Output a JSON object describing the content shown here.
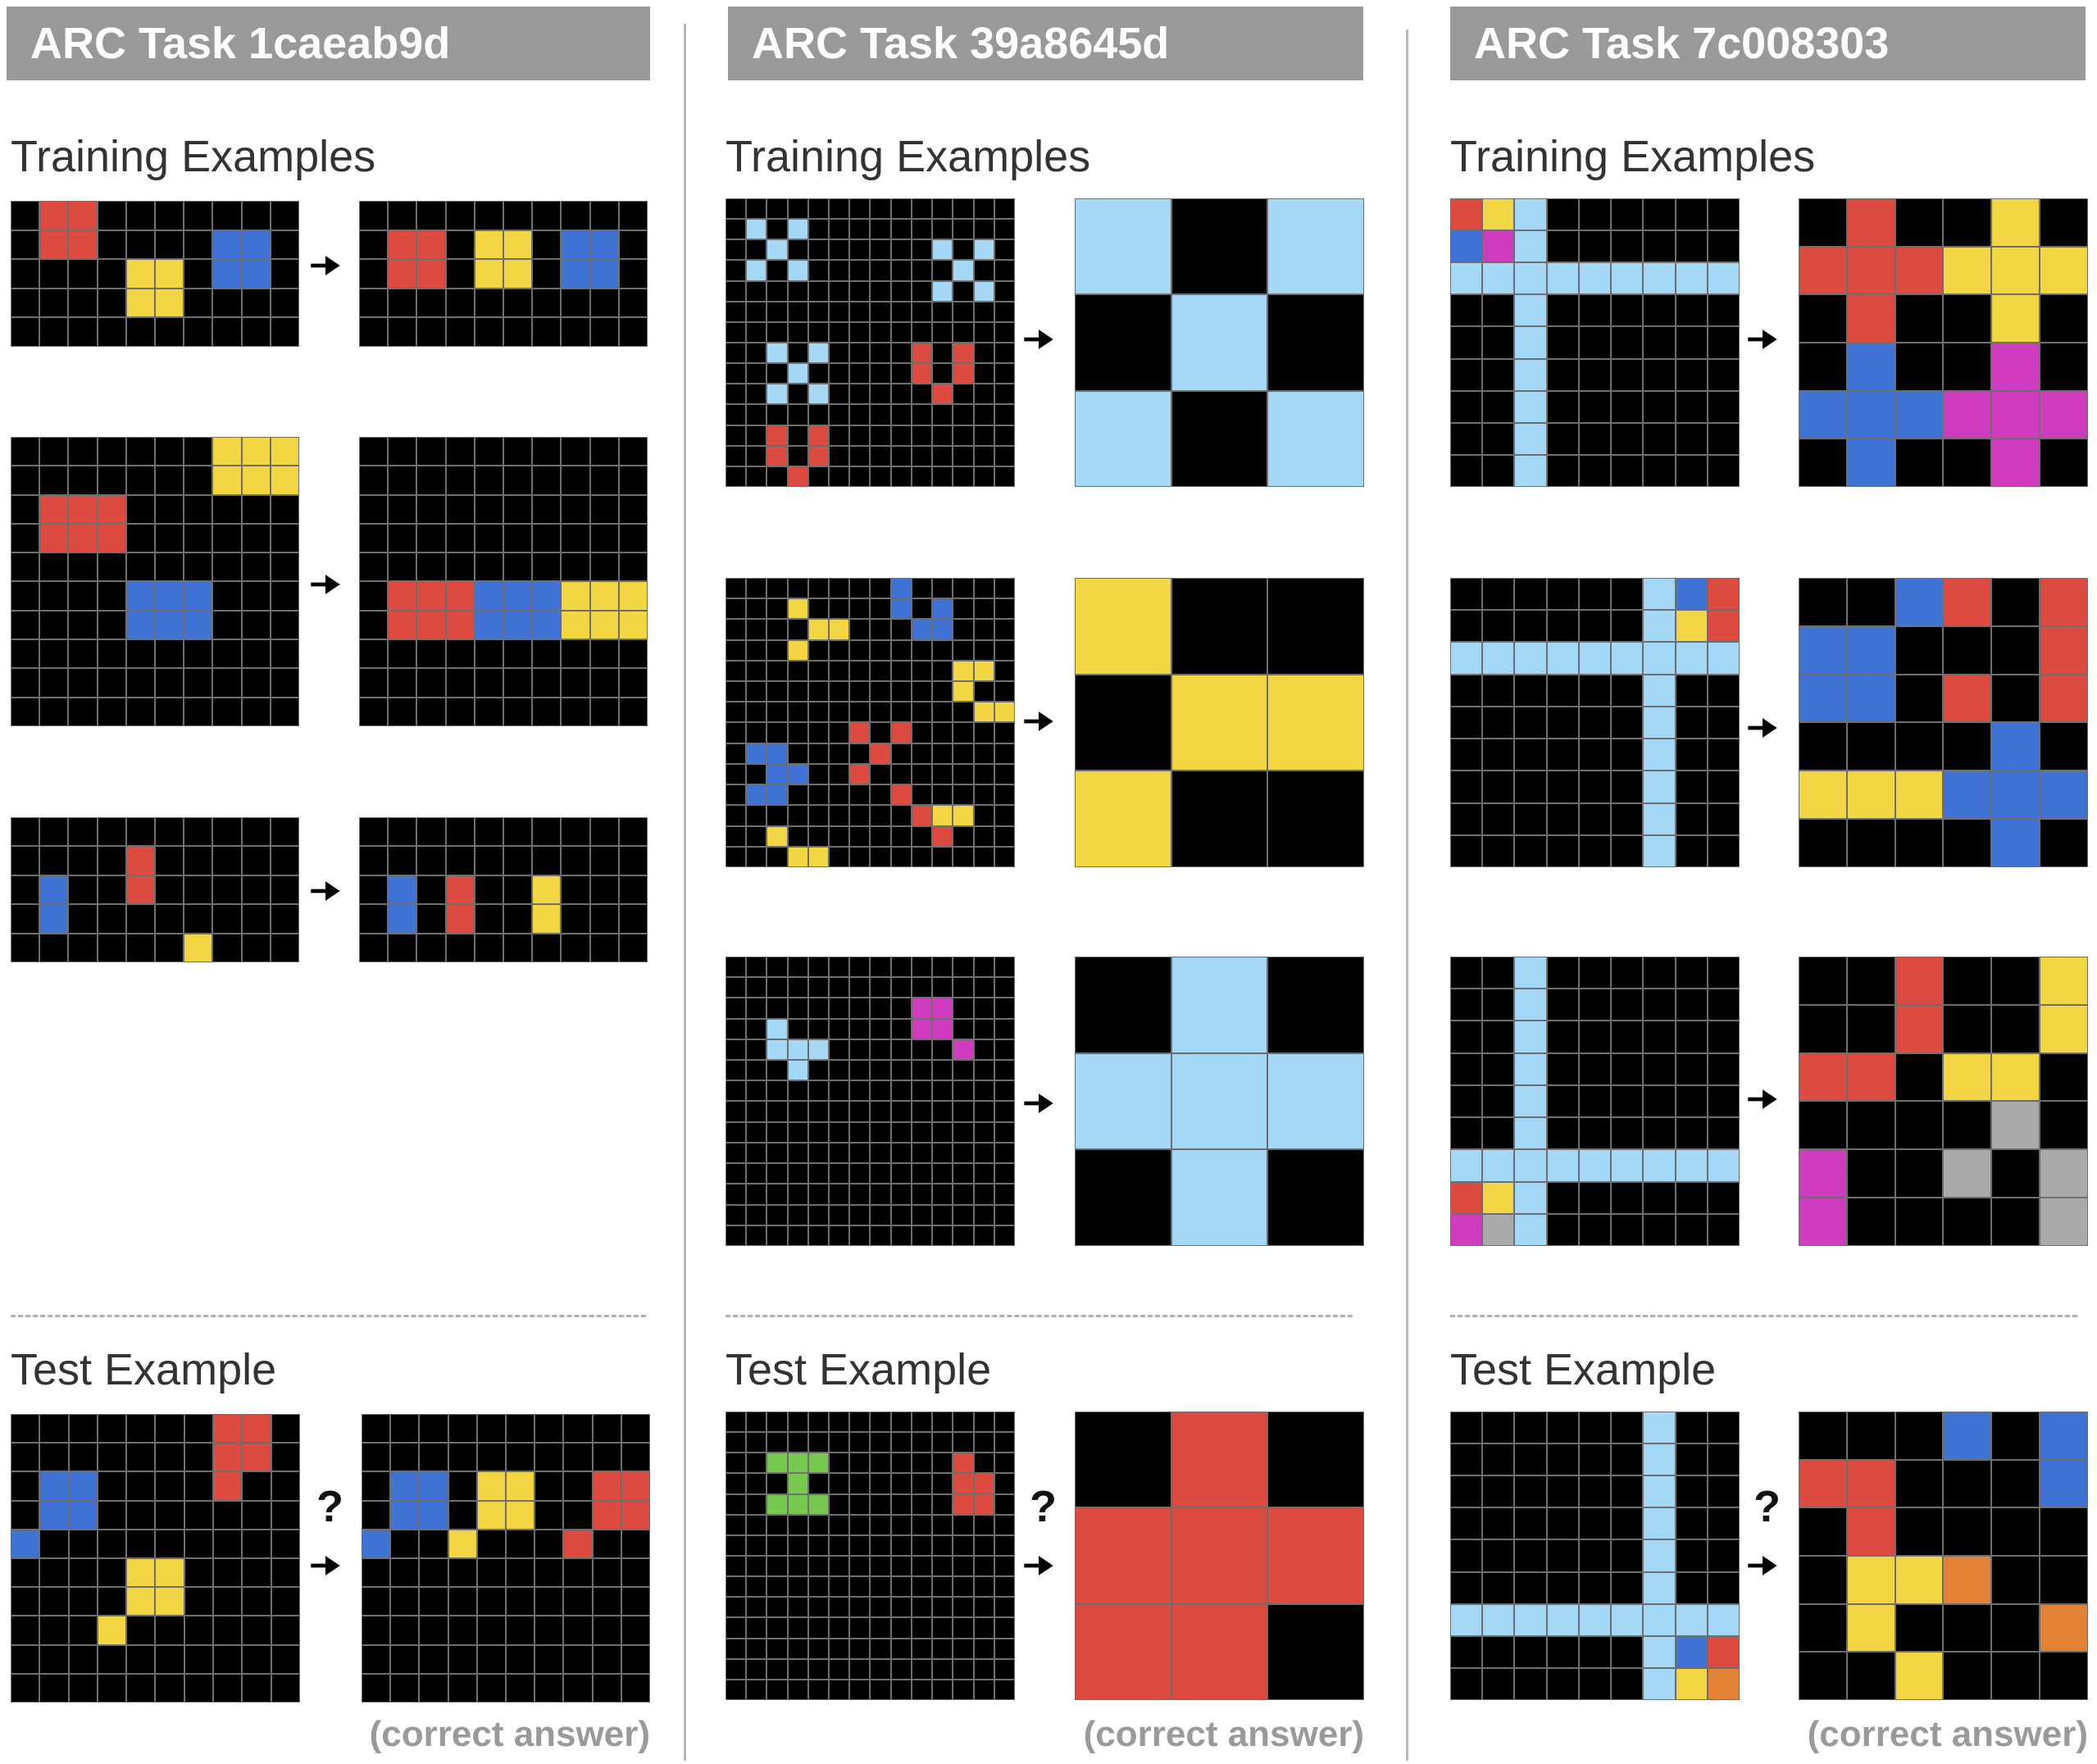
{
  "palette": {
    "0": "#000000",
    "1": "#4173d6",
    "2": "#dd4a3f",
    "3": "#77c84e",
    "4": "#f1d542",
    "5": "#aaaaaa",
    "6": "#d03cbf",
    "7": "#e38235",
    "8": "#a5d8f6"
  },
  "tasks": [
    {
      "title": "ARC Task 1caeab9d",
      "training_label": "Training Examples",
      "test_label": "Test Example",
      "test_question": "?",
      "answer_caption": "(correct answer)",
      "train": [
        {
          "input": [
            "0220000000",
            "0220000110",
            "0000440110",
            "0000440000",
            "0000000000"
          ],
          "output": [
            "0000000000",
            "0220440110",
            "0220440110",
            "0000000000",
            "0000000000"
          ]
        },
        {
          "input": [
            "0000000444",
            "0000000444",
            "0222000000",
            "0222000000",
            "0000000000",
            "0000111000",
            "0000111000",
            "0000000000",
            "0000000000",
            "0000000000"
          ],
          "output": [
            "0000000000",
            "0000000000",
            "0000000000",
            "0000000000",
            "0000000000",
            "0222111444",
            "0222111444",
            "0000000000",
            "0000000000",
            "0000000000"
          ]
        },
        {
          "input": [
            "0000000000",
            "0000200000",
            "0100200000",
            "0100000000",
            "0000004000"
          ],
          "output": [
            "0000000000",
            "0000000000",
            "0102004000",
            "0102004000",
            "0000000000"
          ]
        }
      ],
      "test": {
        "input": [
          "0000000220",
          "0000000220",
          "0110000200",
          "0110000000",
          "1000000000",
          "0000440000",
          "0000440000",
          "0004000000",
          "0000000000",
          "0000000000"
        ],
        "output": [
          "0000000000",
          "0000000000",
          "0110440022",
          "0110440022",
          "1004000200",
          "0000000000",
          "0000000000",
          "0000000000",
          "0000000000",
          "0000000000"
        ]
      }
    },
    {
      "title": "ARC Task 39a8645d",
      "training_label": "Training Examples",
      "test_label": "Test Example",
      "test_question": "?",
      "answer_caption": "(correct answer)",
      "train": [
        {
          "input": [
            "00000000000000",
            "08080000000000",
            "00800000008080",
            "08080000000800",
            "00000000008080",
            "00000000000000",
            "00000000000000",
            "00808000020200",
            "00080000020200",
            "00808000002000",
            "00000000000000",
            "00202000000000",
            "00202000000000",
            "00020000000000"
          ],
          "output": [
            "808",
            "080",
            "808"
          ]
        },
        {
          "input": [
            "00000000100000",
            "00040000101000",
            "00004400011000",
            "00040000000000",
            "00000000000440",
            "00000000000400",
            "00000000000044",
            "00000020200000",
            "01100002000000",
            "00110020000000",
            "01100000200000",
            "00000000024400",
            "00400000002000",
            "00044000000000"
          ],
          "output": [
            "400",
            "044",
            "400"
          ]
        },
        {
          "input": [
            "00000000000000",
            "00000000000000",
            "00000000066000",
            "00800000066000",
            "00888000000600",
            "00080000000000",
            "00000000000000",
            "00000000000000",
            "00000000000000",
            "00000000000000",
            "00000000000000",
            "00000000000000",
            "00000000000000",
            "00000000000000"
          ],
          "output": [
            "080",
            "888",
            "080"
          ]
        }
      ],
      "test": {
        "input": [
          "00000000000000",
          "00000000000000",
          "00333000000200",
          "00030000000220",
          "00333000000220",
          "00000000000000",
          "00000000000000",
          "00000000000000",
          "00000000000000",
          "00000000000000",
          "00000000000000",
          "00000000000000",
          "00000000000000",
          "00000000000000"
        ],
        "output": [
          "020",
          "222",
          "220"
        ]
      }
    },
    {
      "title": "ARC Task 7c008303",
      "training_label": "Training Examples",
      "test_label": "Test Example",
      "test_question": "?",
      "answer_caption": "(correct answer)",
      "train": [
        {
          "input": [
            "248000000",
            "168000000",
            "888888888",
            "008000000",
            "008000000",
            "008000000",
            "008000000",
            "008000000",
            "008000000"
          ],
          "output": [
            "020040",
            "222444",
            "020040",
            "010060",
            "111666",
            "010060"
          ]
        },
        {
          "input": [
            "000000812",
            "000000842",
            "888888888",
            "000000800",
            "000000800",
            "000000800",
            "000000800",
            "000000800",
            "000000800"
          ],
          "output": [
            "001202",
            "110002",
            "110202",
            "000010",
            "444111",
            "000010"
          ]
        },
        {
          "input": [
            "008000000",
            "008000000",
            "008000000",
            "008000000",
            "008000000",
            "008000000",
            "888888888",
            "248000000",
            "658000000"
          ],
          "output": [
            "002004",
            "002004",
            "220440",
            "000050",
            "600505",
            "600005"
          ]
        }
      ],
      "test": {
        "input": [
          "000000800",
          "000000800",
          "000000800",
          "000000800",
          "000000800",
          "000000800",
          "888888888",
          "000000812",
          "000000847"
        ],
        "output": [
          "000101",
          "220001",
          "020000",
          "044700",
          "040007",
          "004000"
        ]
      }
    }
  ]
}
